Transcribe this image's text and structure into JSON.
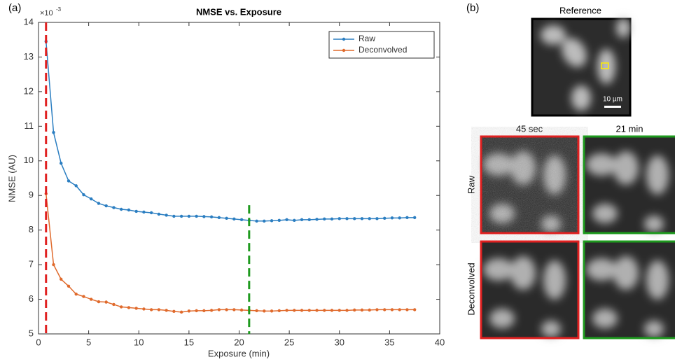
{
  "chart_data": {
    "type": "line",
    "title": "NMSE vs. Exposure",
    "x_label": "Exposure (min)",
    "y_label": "NMSE (AU)",
    "y_exponent": {
      "base": "×10",
      "power": "-3"
    },
    "x": [
      0.75,
      1.5,
      2.25,
      3,
      3.75,
      4.5,
      5.25,
      6,
      6.75,
      7.5,
      8.25,
      9,
      9.75,
      10.5,
      11.25,
      12,
      12.75,
      13.5,
      14.25,
      15,
      15.75,
      16.5,
      17.25,
      18,
      18.75,
      19.5,
      20.25,
      21,
      21.75,
      22.5,
      23.25,
      24,
      24.75,
      25.5,
      26.25,
      27,
      27.75,
      28.5,
      29.25,
      30,
      30.75,
      31.5,
      32.25,
      33,
      33.75,
      34.5,
      35.25,
      36,
      36.75,
      37.5
    ],
    "series": [
      {
        "name": "Raw",
        "color": "#2b7ec1",
        "values": [
          13.45,
          10.82,
          9.93,
          9.42,
          9.28,
          9.02,
          8.9,
          8.77,
          8.7,
          8.65,
          8.6,
          8.58,
          8.54,
          8.52,
          8.5,
          8.46,
          8.43,
          8.4,
          8.4,
          8.4,
          8.4,
          8.39,
          8.38,
          8.36,
          8.34,
          8.32,
          8.3,
          8.28,
          8.26,
          8.26,
          8.27,
          8.28,
          8.3,
          8.28,
          8.3,
          8.3,
          8.31,
          8.32,
          8.32,
          8.33,
          8.33,
          8.33,
          8.33,
          8.33,
          8.33,
          8.34,
          8.35,
          8.35,
          8.36,
          8.36
        ]
      },
      {
        "name": "Deconvolved",
        "color": "#e06a2c",
        "values": [
          9.05,
          7.0,
          6.58,
          6.38,
          6.15,
          6.08,
          6.0,
          5.93,
          5.92,
          5.85,
          5.78,
          5.76,
          5.74,
          5.72,
          5.7,
          5.7,
          5.68,
          5.65,
          5.63,
          5.66,
          5.67,
          5.67,
          5.68,
          5.7,
          5.7,
          5.7,
          5.69,
          5.68,
          5.67,
          5.66,
          5.66,
          5.67,
          5.68,
          5.68,
          5.68,
          5.68,
          5.68,
          5.68,
          5.68,
          5.68,
          5.68,
          5.69,
          5.69,
          5.69,
          5.7,
          5.7,
          5.7,
          5.7,
          5.7,
          5.7
        ]
      }
    ],
    "xlim": [
      0,
      40
    ],
    "xticks": [
      0,
      5,
      10,
      15,
      20,
      25,
      30,
      35,
      40
    ],
    "ylim": [
      5,
      14
    ],
    "yticks": [
      5,
      6,
      7,
      8,
      9,
      10,
      11,
      12,
      13,
      14
    ],
    "legend": "top-right",
    "vlines": [
      {
        "x": 0.75,
        "color": "#e02020"
      },
      {
        "x": 21,
        "top": 8.72,
        "color": "#1e9a1e"
      }
    ]
  },
  "panel_labels": [
    "(a)",
    "(b)"
  ],
  "images": {
    "reference": "Reference",
    "scale_bar": "10 µm",
    "columns": [
      "45 sec",
      "21 min"
    ],
    "rows": [
      "Raw",
      "Deconvolved"
    ]
  }
}
